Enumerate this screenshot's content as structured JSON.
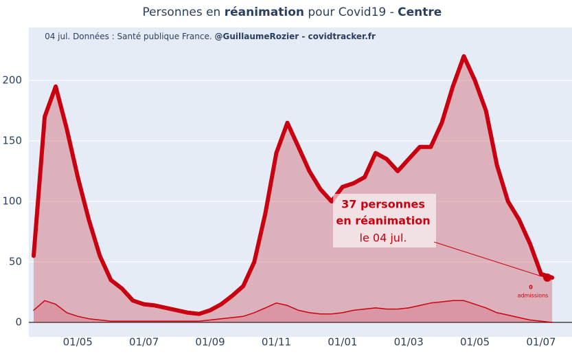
{
  "chart_data": {
    "type": "line",
    "title_parts": [
      "Personnes en ",
      "réanimation",
      " pour Covid19 - ",
      "Centre"
    ],
    "subtitle_parts": [
      "04 jul. Données : Santé publique France. ",
      "@GuillaumeRozier - covidtracker.fr"
    ],
    "categories": [
      null,
      null,
      null,
      null,
      "01/05",
      null,
      null,
      null,
      null,
      null,
      "01/07",
      null,
      null,
      null,
      null,
      null,
      "01/09",
      null,
      null,
      null,
      null,
      null,
      "01/11",
      null,
      null,
      null,
      null,
      null,
      "01/01",
      null,
      null,
      null,
      null,
      null,
      "01/03",
      null,
      null,
      null,
      null,
      null,
      "01/05",
      null,
      null,
      null,
      null,
      null,
      "01/07",
      null
    ],
    "series": [
      {
        "color": "#c8000f",
        "values": [
          55,
          170,
          195,
          160,
          120,
          85,
          55,
          35,
          28,
          18,
          15,
          14,
          12,
          10,
          8,
          7,
          10,
          15,
          22,
          30,
          50,
          90,
          140,
          165,
          145,
          125,
          110,
          100,
          112,
          115,
          120,
          140,
          135,
          125,
          135,
          145,
          145,
          165,
          195,
          220,
          200,
          175,
          130,
          100,
          85,
          65,
          40,
          37
        ]
      },
      {
        "color": "#c8000f",
        "values": [
          10,
          18,
          15,
          8,
          5,
          3,
          2,
          1,
          1,
          1,
          1,
          1,
          1,
          1,
          1,
          1,
          2,
          3,
          4,
          5,
          8,
          12,
          16,
          14,
          10,
          8,
          7,
          7,
          8,
          10,
          11,
          12,
          11,
          11,
          12,
          14,
          16,
          17,
          18,
          18,
          15,
          12,
          8,
          6,
          4,
          2,
          1,
          0
        ]
      }
    ],
    "annotation": {
      "lines": [
        "37 personnes",
        "en réanimation",
        "le 04 jul."
      ],
      "admissions_value": "0",
      "admissions_label": "admissions"
    },
    "ylim": [
      0,
      200
    ],
    "yticks": [
      0,
      50,
      100,
      150,
      200
    ],
    "grid": true
  }
}
